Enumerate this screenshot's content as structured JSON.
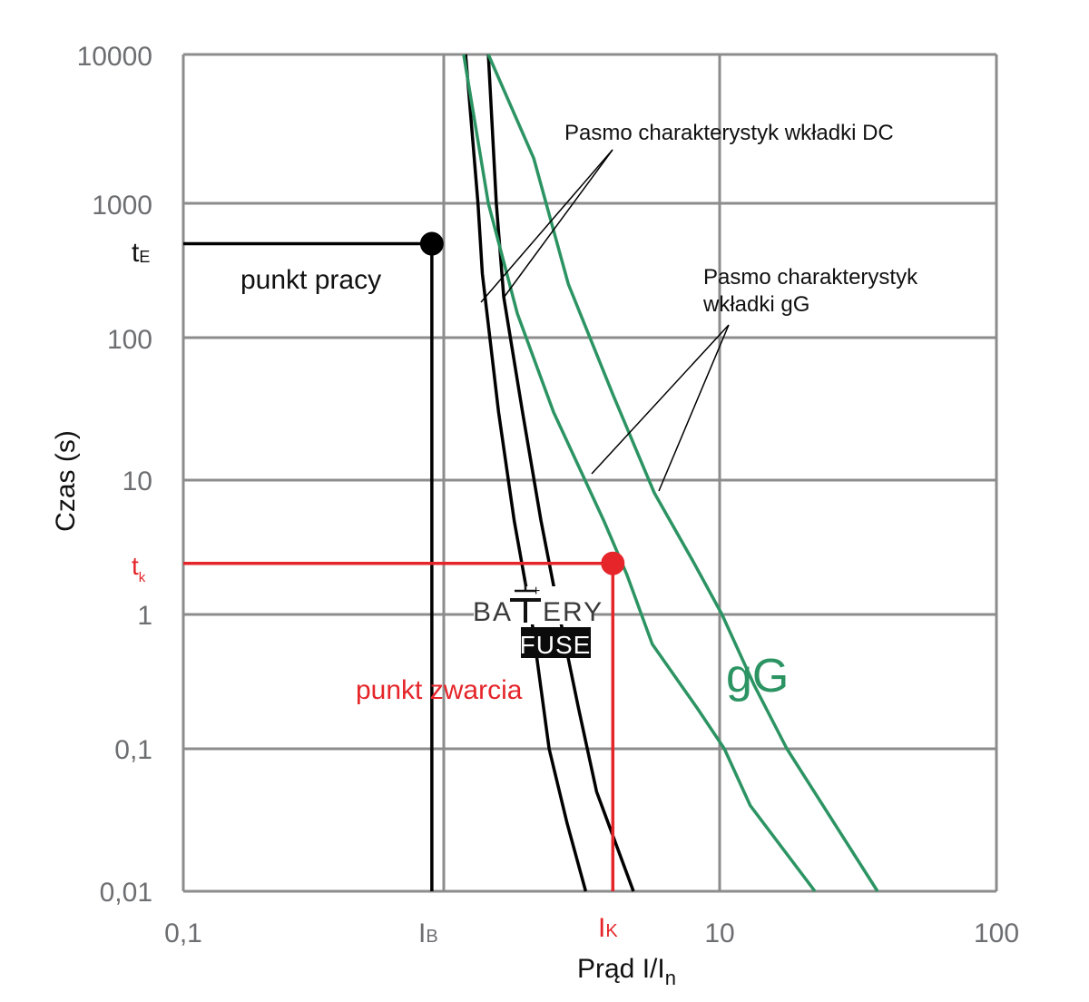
{
  "chart_data": {
    "type": "line",
    "title": "",
    "xlabel": "Prąd   I/I",
    "xlabel_sub": "n",
    "ylabel": "Czas (s)",
    "x_scale": "log",
    "y_scale": "log",
    "xlim": [
      0.1,
      100
    ],
    "ylim": [
      0.01,
      10000
    ],
    "grid": true,
    "x_ticks": [
      {
        "value": 0.1,
        "label": "0,1"
      },
      {
        "value": 1,
        "label": ""
      },
      {
        "value": 10,
        "label": "10"
      },
      {
        "value": 100,
        "label": "100"
      }
    ],
    "y_ticks": [
      {
        "value": 10000,
        "label": "10000"
      },
      {
        "value": 1000,
        "label": "1000"
      },
      {
        "value": 100,
        "label": "100"
      },
      {
        "value": 10,
        "label": "10"
      },
      {
        "value": 1,
        "label": "1"
      },
      {
        "value": 0.1,
        "label": "0,1"
      },
      {
        "value": 0.01,
        "label": "0,01"
      }
    ],
    "series": [
      {
        "name": "DC lower",
        "group": "DC",
        "color": "#000000",
        "points": [
          [
            1.2,
            10000
          ],
          [
            1.33,
            1000
          ],
          [
            1.38,
            300
          ],
          [
            1.58,
            30
          ],
          [
            1.8,
            5
          ],
          [
            2.07,
            1
          ],
          [
            2.41,
            0.1
          ],
          [
            2.8,
            0.03
          ],
          [
            3.27,
            0.01
          ]
        ]
      },
      {
        "name": "DC upper",
        "group": "DC",
        "color": "#000000",
        "points": [
          [
            1.45,
            10000
          ],
          [
            1.55,
            1000
          ],
          [
            1.65,
            200
          ],
          [
            1.93,
            30
          ],
          [
            2.25,
            5
          ],
          [
            2.62,
            1
          ],
          [
            3.08,
            0.2
          ],
          [
            3.58,
            0.05
          ],
          [
            4.87,
            0.01
          ]
        ]
      },
      {
        "name": "gG lower",
        "group": "gG",
        "color": "#2c9463",
        "points": [
          [
            1.18,
            10000
          ],
          [
            1.45,
            1000
          ],
          [
            1.85,
            150
          ],
          [
            2.5,
            30
          ],
          [
            3.8,
            5
          ],
          [
            4.6,
            2
          ],
          [
            5.7,
            0.6
          ],
          [
            8.3,
            0.2
          ],
          [
            10.4,
            0.1
          ],
          [
            12.9,
            0.04
          ],
          [
            22.1,
            0.01
          ]
        ]
      },
      {
        "name": "gG upper",
        "group": "gG",
        "color": "#2c9463",
        "points": [
          [
            1.45,
            10000
          ],
          [
            2.12,
            2000
          ],
          [
            2.83,
            250
          ],
          [
            4.1,
            40
          ],
          [
            5.8,
            8
          ],
          [
            8.0,
            2.5
          ],
          [
            10.2,
            1
          ],
          [
            13.3,
            0.3
          ],
          [
            17.5,
            0.1
          ],
          [
            37.2,
            0.01
          ]
        ]
      }
    ],
    "markers": [
      {
        "name": "punkt pracy",
        "x": 0.9,
        "y": 500,
        "color": "#000000",
        "x_label": "I",
        "x_label_sub": "B",
        "y_label": "t",
        "y_label_sub": "E"
      },
      {
        "name": "punkt zwarcia",
        "x": 4.1,
        "y": 2.4,
        "color": "#e5252a",
        "x_label": "I",
        "x_label_sub": "K",
        "y_label": "t",
        "y_label_sub": "k"
      }
    ],
    "annotations": {
      "dc_band": "Pasmo charakterystyk wkładki DC",
      "gg_band_line1": "Pasmo charakterystyk",
      "gg_band_line2": "wkładki gG",
      "gg_short": "gG",
      "work_point": "punkt pracy",
      "short_point": "punkt zwarcia"
    },
    "logo": {
      "line1": "BA",
      "line2": "ERY",
      "bottom": "FUSE",
      "plus": "+"
    }
  },
  "colors": {
    "grid": "#8c8c8c",
    "dc": "#000000",
    "gg": "#2c9463",
    "short": "#e5252a",
    "tick": "#6d6e71"
  }
}
